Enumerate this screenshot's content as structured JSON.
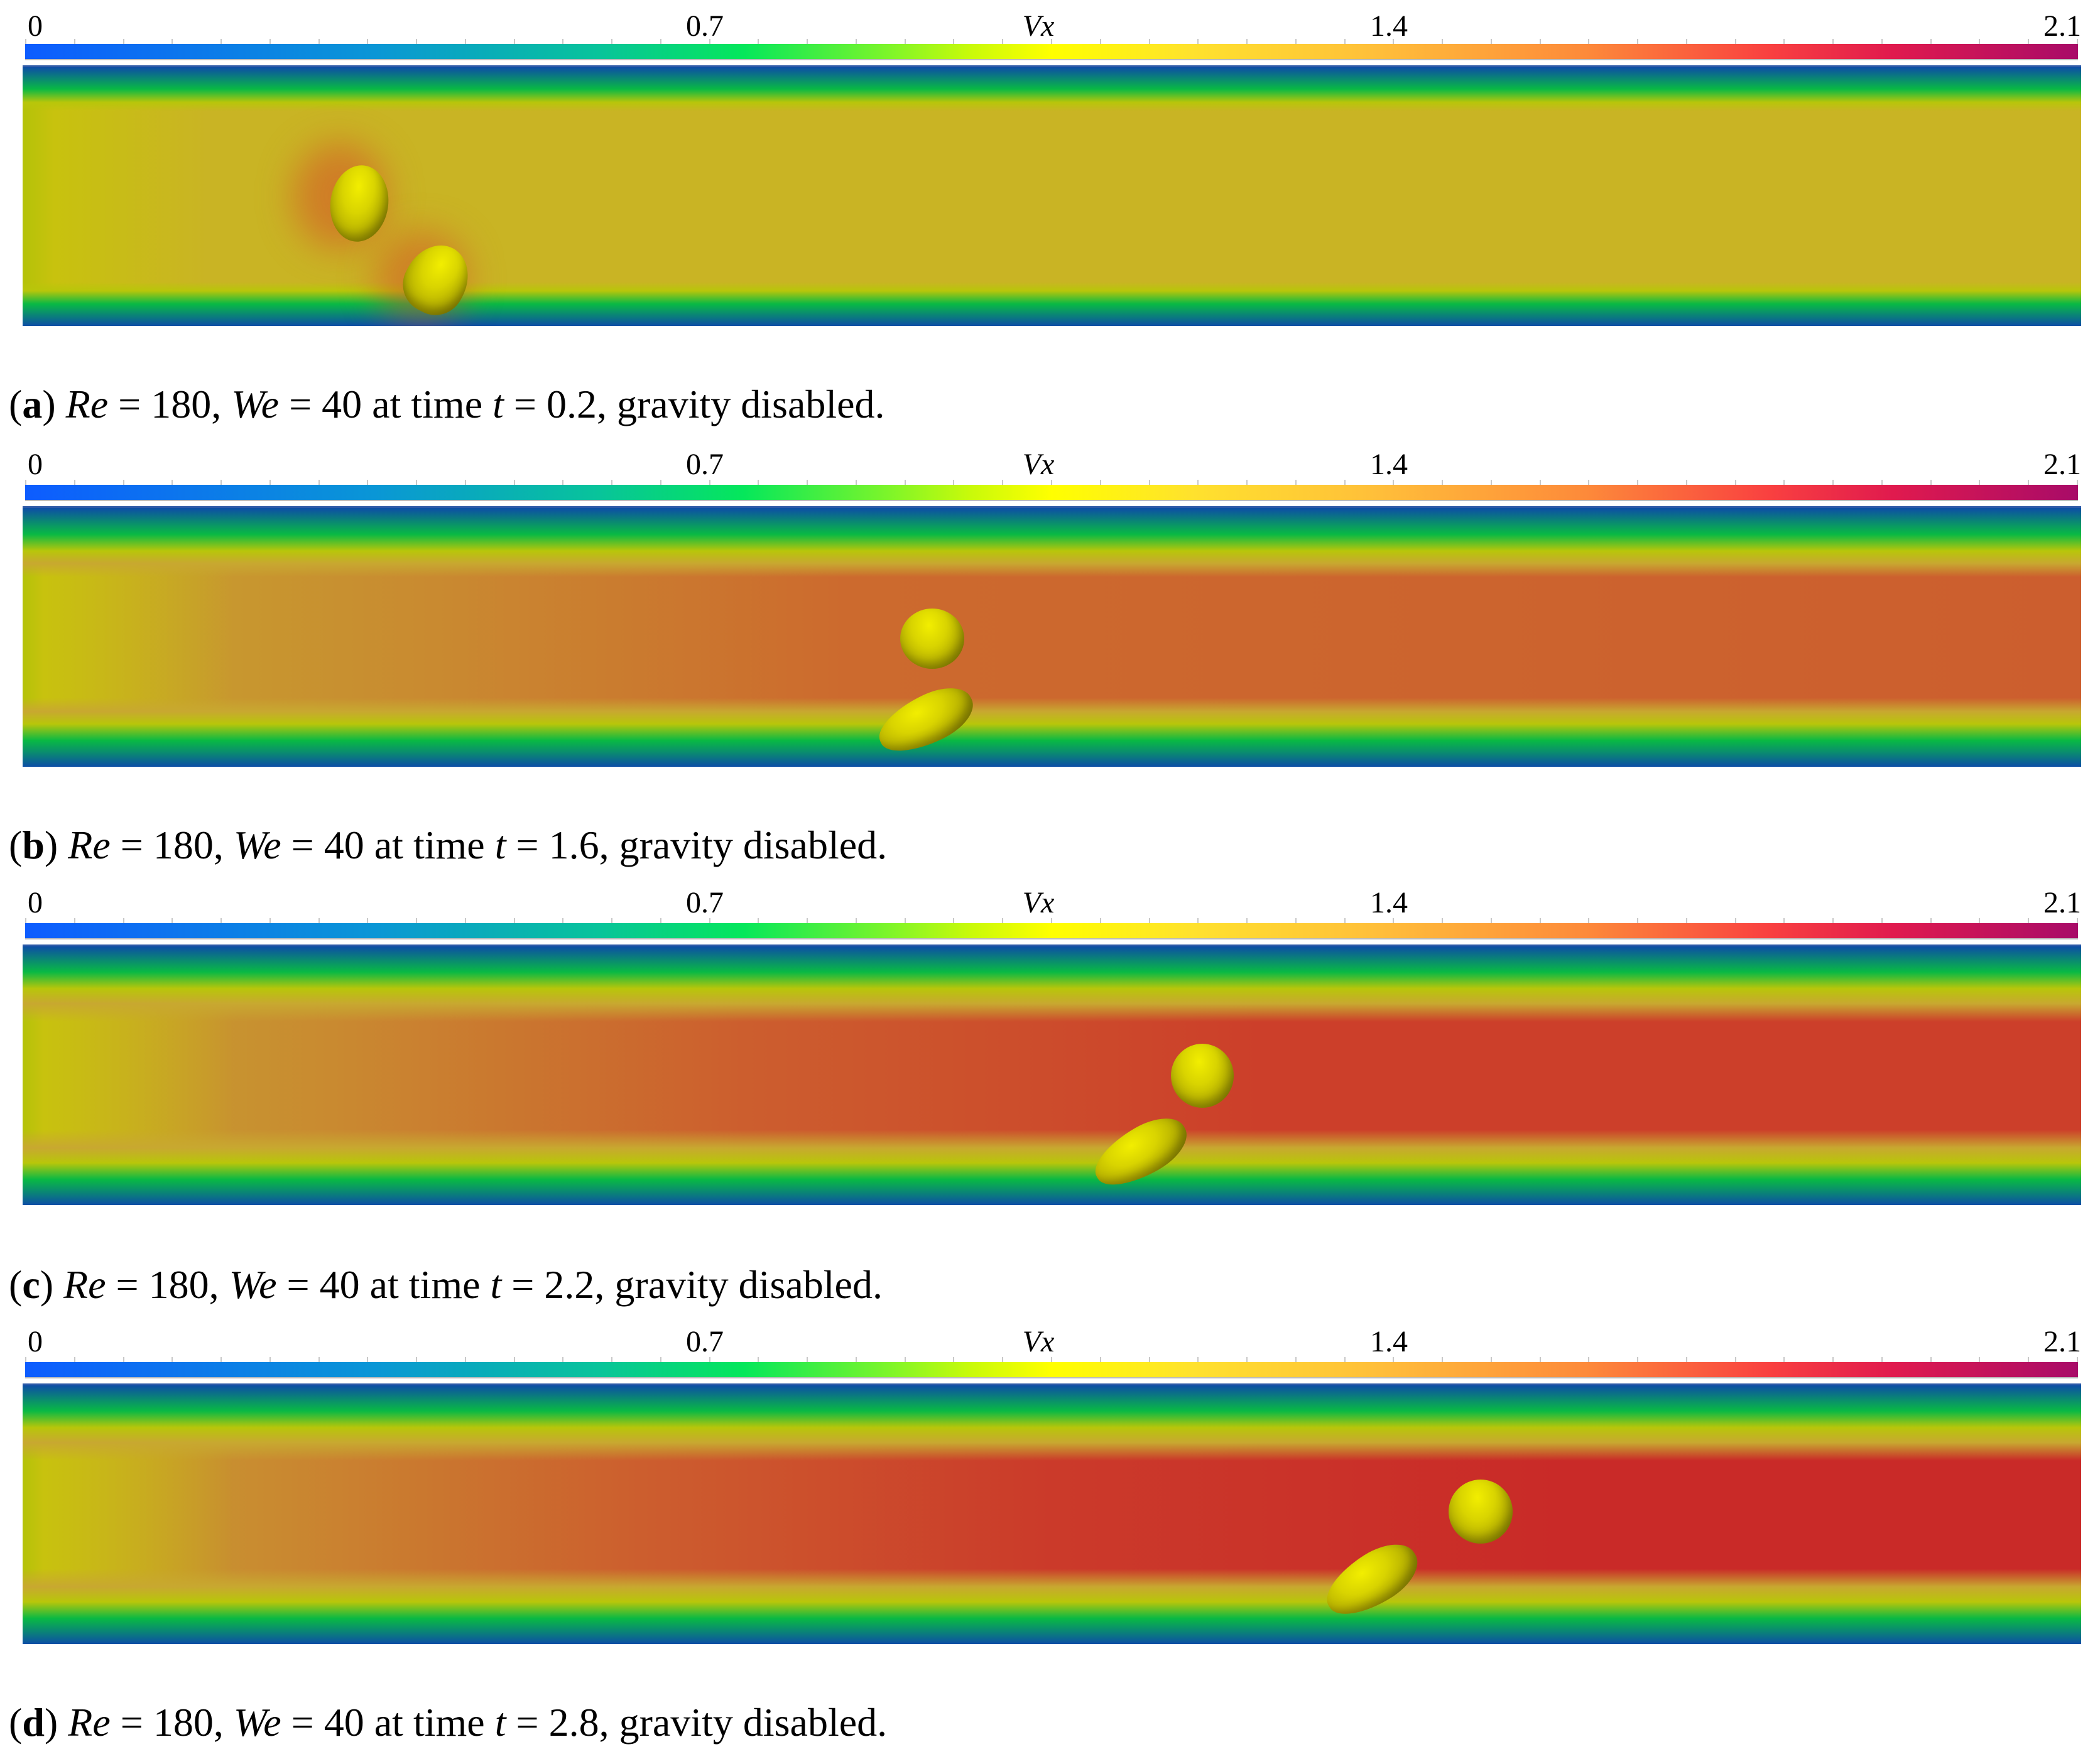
{
  "colorbar": {
    "title": "Vx",
    "labels": [
      "0",
      "0.7",
      "1.4",
      "2.1"
    ],
    "min": 0,
    "max": 2.1,
    "colors": [
      "#0d5cff",
      "#08c49a",
      "#05e75b",
      "#ffff00",
      "#ffbe3a",
      "#f94040",
      "#a80b68"
    ]
  },
  "panels": [
    {
      "letter": "a",
      "re_symbol": "Re",
      "re_value": "180",
      "we_symbol": "We",
      "we_value": "40",
      "time_symbol": "t",
      "time_value": "0.2",
      "text_at_time": "at time",
      "suffix": ", gravity disabled.",
      "core_color": "#c9b424"
    },
    {
      "letter": "b",
      "re_symbol": "Re",
      "re_value": "180",
      "we_symbol": "We",
      "we_value": "40",
      "time_symbol": "t",
      "time_value": "1.6",
      "text_at_time": "at time",
      "suffix": ", gravity disabled.",
      "core_color": "#cc5e2e"
    },
    {
      "letter": "c",
      "re_symbol": "Re",
      "re_value": "180",
      "we_symbol": "We",
      "we_value": "40",
      "time_symbol": "t",
      "time_value": "2.2",
      "text_at_time": "at time",
      "suffix": ", gravity disabled.",
      "core_color": "#cc3f2a"
    },
    {
      "letter": "d",
      "re_symbol": "Re",
      "re_value": "180",
      "we_symbol": "We",
      "we_value": "40",
      "time_symbol": "t",
      "time_value": "2.8",
      "text_at_time": "at time",
      "suffix": ", gravity disabled.",
      "core_color": "#c92a28"
    }
  ]
}
